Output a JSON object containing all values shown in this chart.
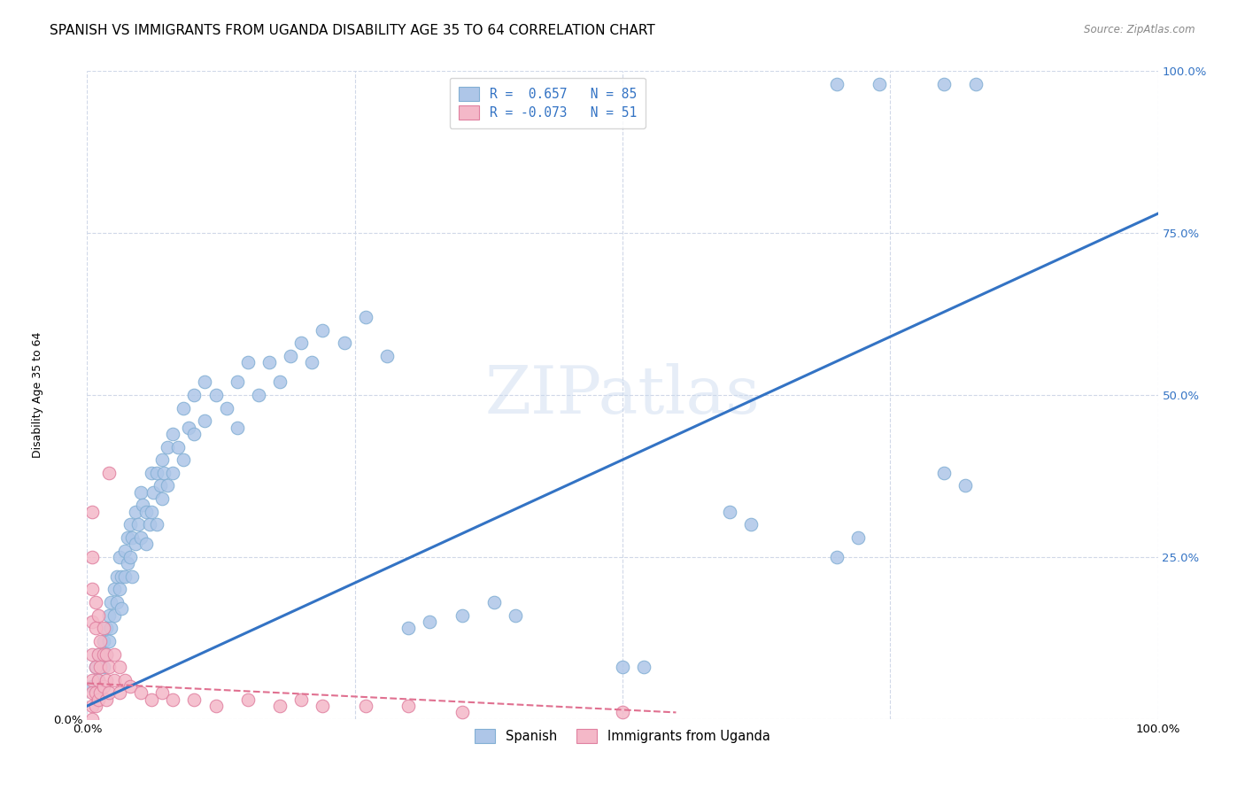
{
  "title": "SPANISH VS IMMIGRANTS FROM UGANDA DISABILITY AGE 35 TO 64 CORRELATION CHART",
  "source": "Source: ZipAtlas.com",
  "ylabel": "Disability Age 35 to 64",
  "xlim": [
    0,
    1.0
  ],
  "ylim": [
    0,
    1.0
  ],
  "watermark": "ZIPatlas",
  "y_ticks": [
    0.0,
    0.25,
    0.5,
    0.75,
    1.0
  ],
  "right_y_ticks": [
    0.25,
    0.5,
    0.75,
    1.0
  ],
  "right_y_labels": [
    "25.0%",
    "50.0%",
    "75.0%",
    "100.0%"
  ],
  "blue_scatter": [
    [
      0.005,
      0.05
    ],
    [
      0.008,
      0.08
    ],
    [
      0.01,
      0.1
    ],
    [
      0.01,
      0.06
    ],
    [
      0.012,
      0.09
    ],
    [
      0.015,
      0.12
    ],
    [
      0.015,
      0.08
    ],
    [
      0.018,
      0.14
    ],
    [
      0.018,
      0.1
    ],
    [
      0.02,
      0.16
    ],
    [
      0.02,
      0.12
    ],
    [
      0.022,
      0.18
    ],
    [
      0.022,
      0.14
    ],
    [
      0.025,
      0.2
    ],
    [
      0.025,
      0.16
    ],
    [
      0.028,
      0.22
    ],
    [
      0.028,
      0.18
    ],
    [
      0.03,
      0.25
    ],
    [
      0.03,
      0.2
    ],
    [
      0.032,
      0.22
    ],
    [
      0.032,
      0.17
    ],
    [
      0.035,
      0.26
    ],
    [
      0.035,
      0.22
    ],
    [
      0.038,
      0.28
    ],
    [
      0.038,
      0.24
    ],
    [
      0.04,
      0.3
    ],
    [
      0.04,
      0.25
    ],
    [
      0.042,
      0.28
    ],
    [
      0.042,
      0.22
    ],
    [
      0.045,
      0.32
    ],
    [
      0.045,
      0.27
    ],
    [
      0.048,
      0.3
    ],
    [
      0.05,
      0.35
    ],
    [
      0.05,
      0.28
    ],
    [
      0.052,
      0.33
    ],
    [
      0.055,
      0.32
    ],
    [
      0.055,
      0.27
    ],
    [
      0.058,
      0.3
    ],
    [
      0.06,
      0.38
    ],
    [
      0.06,
      0.32
    ],
    [
      0.062,
      0.35
    ],
    [
      0.065,
      0.38
    ],
    [
      0.065,
      0.3
    ],
    [
      0.068,
      0.36
    ],
    [
      0.07,
      0.4
    ],
    [
      0.07,
      0.34
    ],
    [
      0.072,
      0.38
    ],
    [
      0.075,
      0.42
    ],
    [
      0.075,
      0.36
    ],
    [
      0.08,
      0.44
    ],
    [
      0.08,
      0.38
    ],
    [
      0.085,
      0.42
    ],
    [
      0.09,
      0.48
    ],
    [
      0.09,
      0.4
    ],
    [
      0.095,
      0.45
    ],
    [
      0.1,
      0.5
    ],
    [
      0.1,
      0.44
    ],
    [
      0.11,
      0.52
    ],
    [
      0.11,
      0.46
    ],
    [
      0.12,
      0.5
    ],
    [
      0.13,
      0.48
    ],
    [
      0.14,
      0.52
    ],
    [
      0.14,
      0.45
    ],
    [
      0.15,
      0.55
    ],
    [
      0.16,
      0.5
    ],
    [
      0.17,
      0.55
    ],
    [
      0.18,
      0.52
    ],
    [
      0.19,
      0.56
    ],
    [
      0.2,
      0.58
    ],
    [
      0.21,
      0.55
    ],
    [
      0.22,
      0.6
    ],
    [
      0.24,
      0.58
    ],
    [
      0.26,
      0.62
    ],
    [
      0.28,
      0.56
    ],
    [
      0.3,
      0.14
    ],
    [
      0.32,
      0.15
    ],
    [
      0.35,
      0.16
    ],
    [
      0.38,
      0.18
    ],
    [
      0.4,
      0.16
    ],
    [
      0.5,
      0.08
    ],
    [
      0.52,
      0.08
    ],
    [
      0.6,
      0.32
    ],
    [
      0.62,
      0.3
    ],
    [
      0.7,
      0.25
    ],
    [
      0.72,
      0.28
    ],
    [
      0.8,
      0.38
    ],
    [
      0.82,
      0.36
    ]
  ],
  "blue_outliers": [
    [
      0.7,
      0.98
    ],
    [
      0.74,
      0.98
    ],
    [
      0.8,
      0.98
    ],
    [
      0.83,
      0.98
    ]
  ],
  "pink_scatter": [
    [
      0.005,
      0.06
    ],
    [
      0.005,
      0.1
    ],
    [
      0.005,
      0.15
    ],
    [
      0.005,
      0.2
    ],
    [
      0.005,
      0.25
    ],
    [
      0.005,
      0.32
    ],
    [
      0.005,
      0.04
    ],
    [
      0.005,
      0.02
    ],
    [
      0.005,
      0.0
    ],
    [
      0.008,
      0.08
    ],
    [
      0.008,
      0.14
    ],
    [
      0.008,
      0.18
    ],
    [
      0.008,
      0.04
    ],
    [
      0.008,
      0.02
    ],
    [
      0.01,
      0.1
    ],
    [
      0.01,
      0.16
    ],
    [
      0.01,
      0.06
    ],
    [
      0.01,
      0.03
    ],
    [
      0.012,
      0.12
    ],
    [
      0.012,
      0.08
    ],
    [
      0.012,
      0.04
    ],
    [
      0.015,
      0.14
    ],
    [
      0.015,
      0.1
    ],
    [
      0.015,
      0.05
    ],
    [
      0.018,
      0.1
    ],
    [
      0.018,
      0.06
    ],
    [
      0.018,
      0.03
    ],
    [
      0.02,
      0.38
    ],
    [
      0.02,
      0.08
    ],
    [
      0.02,
      0.04
    ],
    [
      0.025,
      0.1
    ],
    [
      0.025,
      0.06
    ],
    [
      0.03,
      0.08
    ],
    [
      0.03,
      0.04
    ],
    [
      0.035,
      0.06
    ],
    [
      0.04,
      0.05
    ],
    [
      0.05,
      0.04
    ],
    [
      0.06,
      0.03
    ],
    [
      0.07,
      0.04
    ],
    [
      0.08,
      0.03
    ],
    [
      0.1,
      0.03
    ],
    [
      0.12,
      0.02
    ],
    [
      0.15,
      0.03
    ],
    [
      0.18,
      0.02
    ],
    [
      0.2,
      0.03
    ],
    [
      0.22,
      0.02
    ],
    [
      0.26,
      0.02
    ],
    [
      0.3,
      0.02
    ],
    [
      0.35,
      0.01
    ],
    [
      0.5,
      0.01
    ]
  ],
  "blue_line_x": [
    0.0,
    1.0
  ],
  "blue_line_y": [
    0.02,
    0.78
  ],
  "pink_line_x": [
    0.0,
    0.55
  ],
  "pink_line_y": [
    0.055,
    0.01
  ],
  "blue_color": "#aec6e8",
  "blue_edge": "#82afd4",
  "pink_color": "#f4b8c8",
  "pink_edge": "#e080a0",
  "blue_line_color": "#3373c4",
  "pink_line_color": "#e07090",
  "grid_color": "#d0d8e8",
  "background_color": "#ffffff",
  "title_fontsize": 11,
  "axis_label_fontsize": 9,
  "tick_fontsize": 9.5,
  "right_tick_color": "#3373c4"
}
